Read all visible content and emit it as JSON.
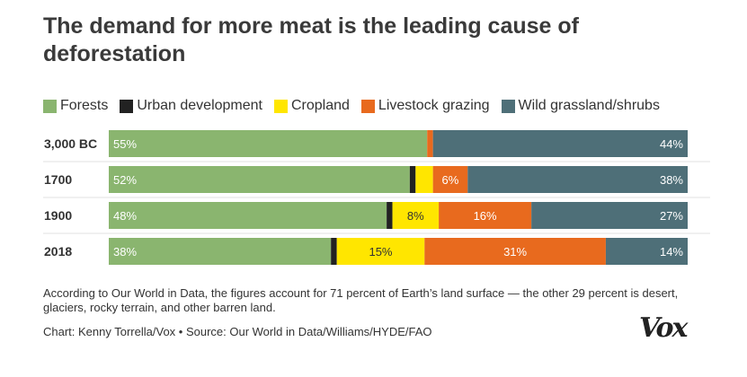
{
  "title": "The demand for more meat is the leading cause of deforestation",
  "colors": {
    "forests": "#8ab56f",
    "urban": "#222222",
    "cropland": "#ffe600",
    "livestock": "#e86a1e",
    "wild": "#4e6f78"
  },
  "legend": [
    {
      "label": "Forests",
      "color": "#8ab56f"
    },
    {
      "label": "Urban development",
      "color": "#222222"
    },
    {
      "label": "Cropland",
      "color": "#ffe600"
    },
    {
      "label": "Livestock grazing",
      "color": "#e86a1e"
    },
    {
      "label": "Wild grassland/shrubs",
      "color": "#4e6f78"
    }
  ],
  "chart_data": {
    "type": "bar",
    "orientation": "horizontal",
    "stacked": true,
    "title": "The demand for more meat is the leading cause of deforestation",
    "categories": [
      "3,000 BC",
      "1700",
      "1900",
      "2018"
    ],
    "series": [
      {
        "name": "Forests",
        "values": [
          55,
          52,
          48,
          38
        ],
        "labels": [
          "55%",
          "52%",
          "48%",
          "38%"
        ]
      },
      {
        "name": "Urban development",
        "values": [
          0,
          1,
          1,
          1
        ],
        "labels": [
          "",
          "",
          "",
          ""
        ]
      },
      {
        "name": "Cropland",
        "values": [
          0,
          3,
          8,
          15
        ],
        "labels": [
          "",
          "",
          "8%",
          "15%"
        ]
      },
      {
        "name": "Livestock grazing",
        "values": [
          1,
          6,
          16,
          31
        ],
        "labels": [
          "",
          "6%",
          "16%",
          "31%"
        ]
      },
      {
        "name": "Wild grassland/shrubs",
        "values": [
          44,
          38,
          27,
          14
        ],
        "labels": [
          "44%",
          "38%",
          "27%",
          "14%"
        ]
      }
    ],
    "xlim": [
      0,
      100
    ],
    "legend_position": "top-left",
    "grid": false
  },
  "note": "According to Our World in Data, the figures account for 71 percent of Earth’s land surface — the other 29 percent is desert, glaciers, rocky terrain, and other barren land.",
  "credit": "Chart: Kenny Torrella/Vox • Source: Our World in Data/Williams/HYDE/FAO",
  "logo": "Vox"
}
